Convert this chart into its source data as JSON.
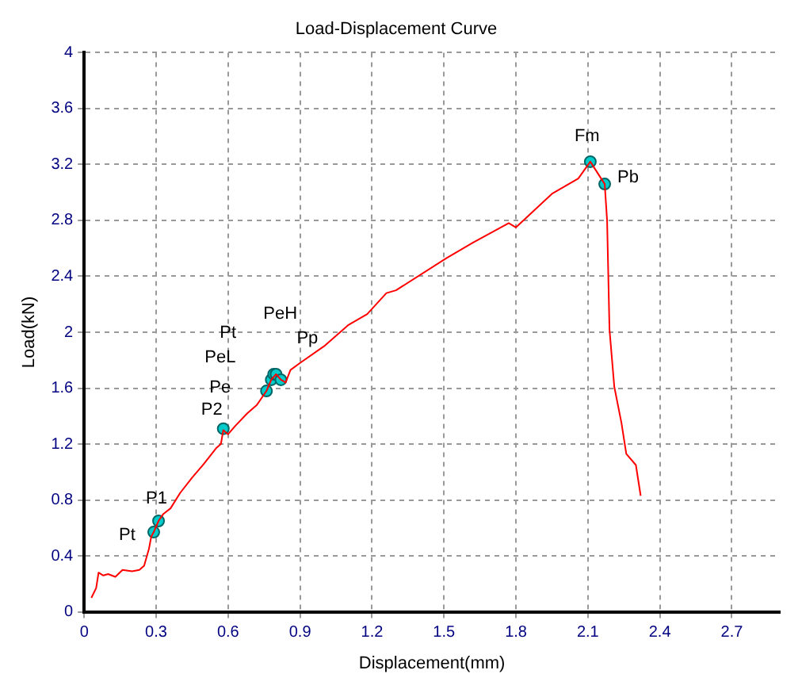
{
  "chart_data": {
    "type": "line",
    "title": "Load-Displacement Curve",
    "xlabel": "Displacement(mm)",
    "ylabel": "Load(kN)",
    "xlim": [
      0,
      2.9
    ],
    "xticks": [
      0,
      0.3,
      0.6,
      0.9,
      1.2,
      1.5,
      1.8,
      2.1,
      2.4,
      2.7
    ],
    "ylim": [
      0,
      4
    ],
    "yticks": [
      0,
      0.4,
      0.8,
      1.2,
      1.6,
      2,
      2.4,
      2.8,
      3.2,
      3.6,
      4
    ],
    "grid": true,
    "legend": false,
    "series": [
      {
        "type": "line",
        "color": "#ff0000",
        "marker": "none",
        "x": [
          0.03,
          0.05,
          0.06,
          0.08,
          0.1,
          0.13,
          0.16,
          0.2,
          0.23,
          0.25,
          0.27,
          0.28,
          0.29,
          0.31,
          0.33,
          0.36,
          0.4,
          0.45,
          0.5,
          0.55,
          0.57,
          0.58,
          0.6,
          0.63,
          0.68,
          0.72,
          0.76,
          0.78,
          0.8,
          0.82,
          0.84,
          0.86,
          0.9,
          1.0,
          1.1,
          1.18,
          1.26,
          1.3,
          1.51,
          1.62,
          1.77,
          1.8,
          1.95,
          2.06,
          2.11,
          2.17,
          2.18,
          2.19,
          2.21,
          2.24,
          2.26,
          2.3,
          2.32
        ],
        "values": [
          0.1,
          0.17,
          0.28,
          0.26,
          0.27,
          0.25,
          0.3,
          0.29,
          0.3,
          0.33,
          0.45,
          0.54,
          0.57,
          0.65,
          0.7,
          0.74,
          0.85,
          0.96,
          1.06,
          1.17,
          1.2,
          1.3,
          1.27,
          1.33,
          1.42,
          1.48,
          1.58,
          1.66,
          1.7,
          1.66,
          1.64,
          1.73,
          1.78,
          1.9,
          2.05,
          2.13,
          2.28,
          2.3,
          2.53,
          2.64,
          2.78,
          2.75,
          2.99,
          3.1,
          3.22,
          3.06,
          2.8,
          2.02,
          1.61,
          1.35,
          1.13,
          1.05,
          0.83
        ]
      },
      {
        "type": "scatter",
        "color": "#00cccc",
        "marker": "circle",
        "x": [
          0.29,
          0.31,
          0.58,
          0.76,
          0.78,
          0.79,
          0.8,
          0.82,
          2.11,
          2.17
        ],
        "values": [
          0.57,
          0.65,
          1.31,
          1.58,
          1.66,
          1.7,
          1.7,
          1.66,
          3.22,
          3.06
        ]
      }
    ],
    "annotations": [
      {
        "text": "Pt",
        "x": 0.29,
        "y": 0.57
      },
      {
        "text": "P1",
        "x": 0.31,
        "y": 0.65
      },
      {
        "text": "P2",
        "x": 0.58,
        "y": 1.31
      },
      {
        "text": "Pe",
        "x": 0.76,
        "y": 1.58
      },
      {
        "text": "PeL",
        "x": 0.78,
        "y": 1.66
      },
      {
        "text": "Pt",
        "x": 0.79,
        "y": 1.7
      },
      {
        "text": "PeH",
        "x": 0.8,
        "y": 1.7
      },
      {
        "text": "Pp",
        "x": 0.82,
        "y": 1.66
      },
      {
        "text": "Fm",
        "x": 2.11,
        "y": 3.22
      },
      {
        "text": "Pb",
        "x": 2.17,
        "y": 3.06
      }
    ]
  }
}
